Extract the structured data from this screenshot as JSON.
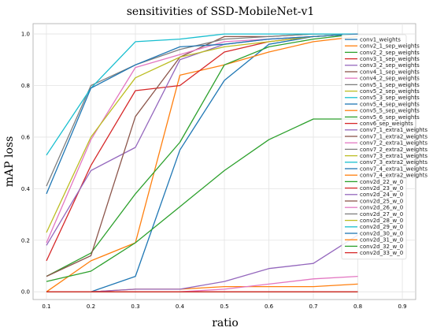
{
  "chart_data": {
    "type": "line",
    "title": "sensitivities of SSD-MobileNet-v1",
    "xlabel": "ratio",
    "ylabel": "mAP loss",
    "xlim": [
      0.07,
      0.93
    ],
    "ylim": [
      -0.03,
      1.04
    ],
    "xticks": [
      "0.1",
      "0.2",
      "0.3",
      "0.4",
      "0.5",
      "0.6",
      "0.7",
      "0.8",
      "0.9"
    ],
    "yticks": [
      "0.0",
      "0.2",
      "0.4",
      "0.6",
      "0.8",
      "1.0"
    ],
    "grid": true,
    "legend_position": "right",
    "x": [
      0.1,
      0.2,
      0.3,
      0.4,
      0.5,
      0.6,
      0.7,
      0.8
    ],
    "series": [
      {
        "name": "conv1_weights",
        "color": "#1f77b4",
        "values": [
          0.0,
          0.0,
          0.06,
          0.55,
          0.82,
          0.96,
          0.99,
          1.0
        ]
      },
      {
        "name": "conv2_1_sep_weights",
        "color": "#ff7f0e",
        "values": [
          0.0,
          0.12,
          0.19,
          0.84,
          0.88,
          0.93,
          0.97,
          0.99
        ]
      },
      {
        "name": "conv2_2_sep_weights",
        "color": "#2ca02c",
        "values": [
          0.06,
          0.15,
          0.38,
          0.58,
          0.88,
          0.95,
          0.98,
          1.0
        ]
      },
      {
        "name": "conv3_1_sep_weights",
        "color": "#d62728",
        "values": [
          0.12,
          0.49,
          0.78,
          0.8,
          0.93,
          0.97,
          0.99,
          1.0
        ]
      },
      {
        "name": "conv3_2_sep_weights",
        "color": "#9467bd",
        "values": [
          0.18,
          0.47,
          0.56,
          0.9,
          0.96,
          0.98,
          0.99,
          1.0
        ]
      },
      {
        "name": "conv4_1_sep_weights",
        "color": "#8c564b",
        "values": [
          0.06,
          0.14,
          0.68,
          0.91,
          0.99,
          0.99,
          1.0,
          1.0
        ]
      },
      {
        "name": "conv4_2_sep_weights",
        "color": "#e377c2",
        "values": [
          0.19,
          0.59,
          0.87,
          0.92,
          0.97,
          0.98,
          0.99,
          1.0
        ]
      },
      {
        "name": "conv5_1_sep_weights",
        "color": "#7f7f7f",
        "values": [
          0.41,
          0.8,
          0.88,
          0.94,
          0.98,
          0.99,
          1.0,
          1.0
        ]
      },
      {
        "name": "conv5_2_sep_weights",
        "color": "#bcbd22",
        "values": [
          0.23,
          0.6,
          0.83,
          0.91,
          0.95,
          0.97,
          0.99,
          1.0
        ]
      },
      {
        "name": "conv5_3_sep_weights",
        "color": "#17becf",
        "values": [
          0.53,
          0.79,
          0.97,
          0.98,
          1.0,
          1.0,
          1.0,
          1.0
        ]
      },
      {
        "name": "conv5_4_sep_weights",
        "color": "#1f77b4",
        "values": [
          0.38,
          0.79,
          0.88,
          0.95,
          0.96,
          0.98,
          0.99,
          1.0
        ]
      },
      {
        "name": "conv5_5_sep_weights",
        "color": "#ff7f0e",
        "values": [
          0.0,
          0.0,
          0.01,
          0.01,
          0.02,
          0.02,
          0.02,
          0.03
        ]
      },
      {
        "name": "conv5_6_sep_weights",
        "color": "#2ca02c",
        "values": [
          0.04,
          0.08,
          0.19,
          0.33,
          0.47,
          0.59,
          0.67,
          0.67
        ]
      },
      {
        "name": "conv6_sep_weights",
        "color": "#d62728",
        "values": [
          0.0,
          0.0,
          0.0,
          0.0,
          0.0,
          0.0,
          0.0,
          0.0
        ]
      },
      {
        "name": "conv7_1_extra1_weights",
        "color": "#9467bd",
        "values": [
          0.0,
          0.0,
          0.01,
          0.01,
          0.04,
          0.09,
          0.11,
          0.22
        ]
      },
      {
        "name": "conv7_1_extra2_weights",
        "color": "#8c564b",
        "values": [
          0.0,
          0.0,
          0.0,
          0.0,
          0.0,
          0.0,
          0.0,
          0.0
        ]
      },
      {
        "name": "conv7_2_extra1_weights",
        "color": "#e377c2",
        "values": [
          0.0,
          0.0,
          0.0,
          0.0,
          0.01,
          0.03,
          0.05,
          0.06
        ]
      },
      {
        "name": "conv7_2_extra2_weights",
        "color": "#7f7f7f",
        "values": [
          0.0,
          0.0,
          0.0,
          0.0,
          0.0,
          0.0,
          0.0,
          0.0
        ]
      },
      {
        "name": "conv7_3_extra1_weights",
        "color": "#bcbd22",
        "values": [
          0.0,
          0.0,
          0.0,
          0.0,
          0.0,
          0.0,
          0.0,
          0.0
        ]
      },
      {
        "name": "conv7_3_extra2_weights",
        "color": "#17becf",
        "values": [
          0.0,
          0.0,
          0.0,
          0.0,
          0.0,
          0.0,
          0.0,
          0.0
        ]
      },
      {
        "name": "conv7_4_extra1_weights",
        "color": "#1f77b4",
        "values": [
          0.0,
          0.0,
          0.0,
          0.0,
          0.0,
          0.0,
          0.0,
          0.0
        ]
      },
      {
        "name": "conv7_4_extra2_weights",
        "color": "#ff7f0e",
        "values": [
          0.0,
          0.0,
          0.0,
          0.0,
          0.0,
          0.0,
          0.0,
          0.0
        ]
      },
      {
        "name": "conv2d_22_w_0",
        "color": "#2ca02c",
        "values": [
          0.0,
          0.0,
          0.0,
          0.0,
          0.0,
          0.0,
          0.0,
          0.0
        ]
      },
      {
        "name": "conv2d_23_w_0",
        "color": "#d62728",
        "values": [
          0.0,
          0.0,
          0.0,
          0.0,
          0.0,
          0.0,
          0.0,
          0.0
        ]
      },
      {
        "name": "conv2d_24_w_0",
        "color": "#9467bd",
        "values": [
          0.0,
          0.0,
          0.0,
          0.0,
          0.0,
          0.0,
          0.0,
          0.0
        ]
      },
      {
        "name": "conv2d_25_w_0",
        "color": "#8c564b",
        "values": [
          0.0,
          0.0,
          0.0,
          0.0,
          0.0,
          0.0,
          0.0,
          0.0
        ]
      },
      {
        "name": "conv2d_26_w_0",
        "color": "#e377c2",
        "values": [
          0.0,
          0.0,
          0.0,
          0.0,
          0.0,
          0.0,
          0.0,
          0.0
        ]
      },
      {
        "name": "conv2d_27_w_0",
        "color": "#7f7f7f",
        "values": [
          0.0,
          0.0,
          0.0,
          0.0,
          0.0,
          0.0,
          0.0,
          0.0
        ]
      },
      {
        "name": "conv2d_28_w_0",
        "color": "#bcbd22",
        "values": [
          0.0,
          0.0,
          0.0,
          0.0,
          0.0,
          0.0,
          0.0,
          0.0
        ]
      },
      {
        "name": "conv2d_29_w_0",
        "color": "#17becf",
        "values": [
          0.0,
          0.0,
          0.0,
          0.0,
          0.0,
          0.0,
          0.0,
          0.0
        ]
      },
      {
        "name": "conv2d_30_w_0",
        "color": "#1f77b4",
        "values": [
          0.0,
          0.0,
          0.0,
          0.0,
          0.0,
          0.0,
          0.0,
          0.0
        ]
      },
      {
        "name": "conv2d_31_w_0",
        "color": "#ff7f0e",
        "values": [
          0.0,
          0.0,
          0.0,
          0.0,
          0.0,
          0.0,
          0.0,
          0.0
        ]
      },
      {
        "name": "conv2d_32_w_0",
        "color": "#2ca02c",
        "values": [
          0.0,
          0.0,
          0.0,
          0.0,
          0.0,
          0.0,
          0.0,
          0.0
        ]
      },
      {
        "name": "conv2d_33_w_0",
        "color": "#d62728",
        "values": [
          0.0,
          0.0,
          0.0,
          0.0,
          0.0,
          0.0,
          0.0,
          0.0
        ]
      }
    ]
  }
}
